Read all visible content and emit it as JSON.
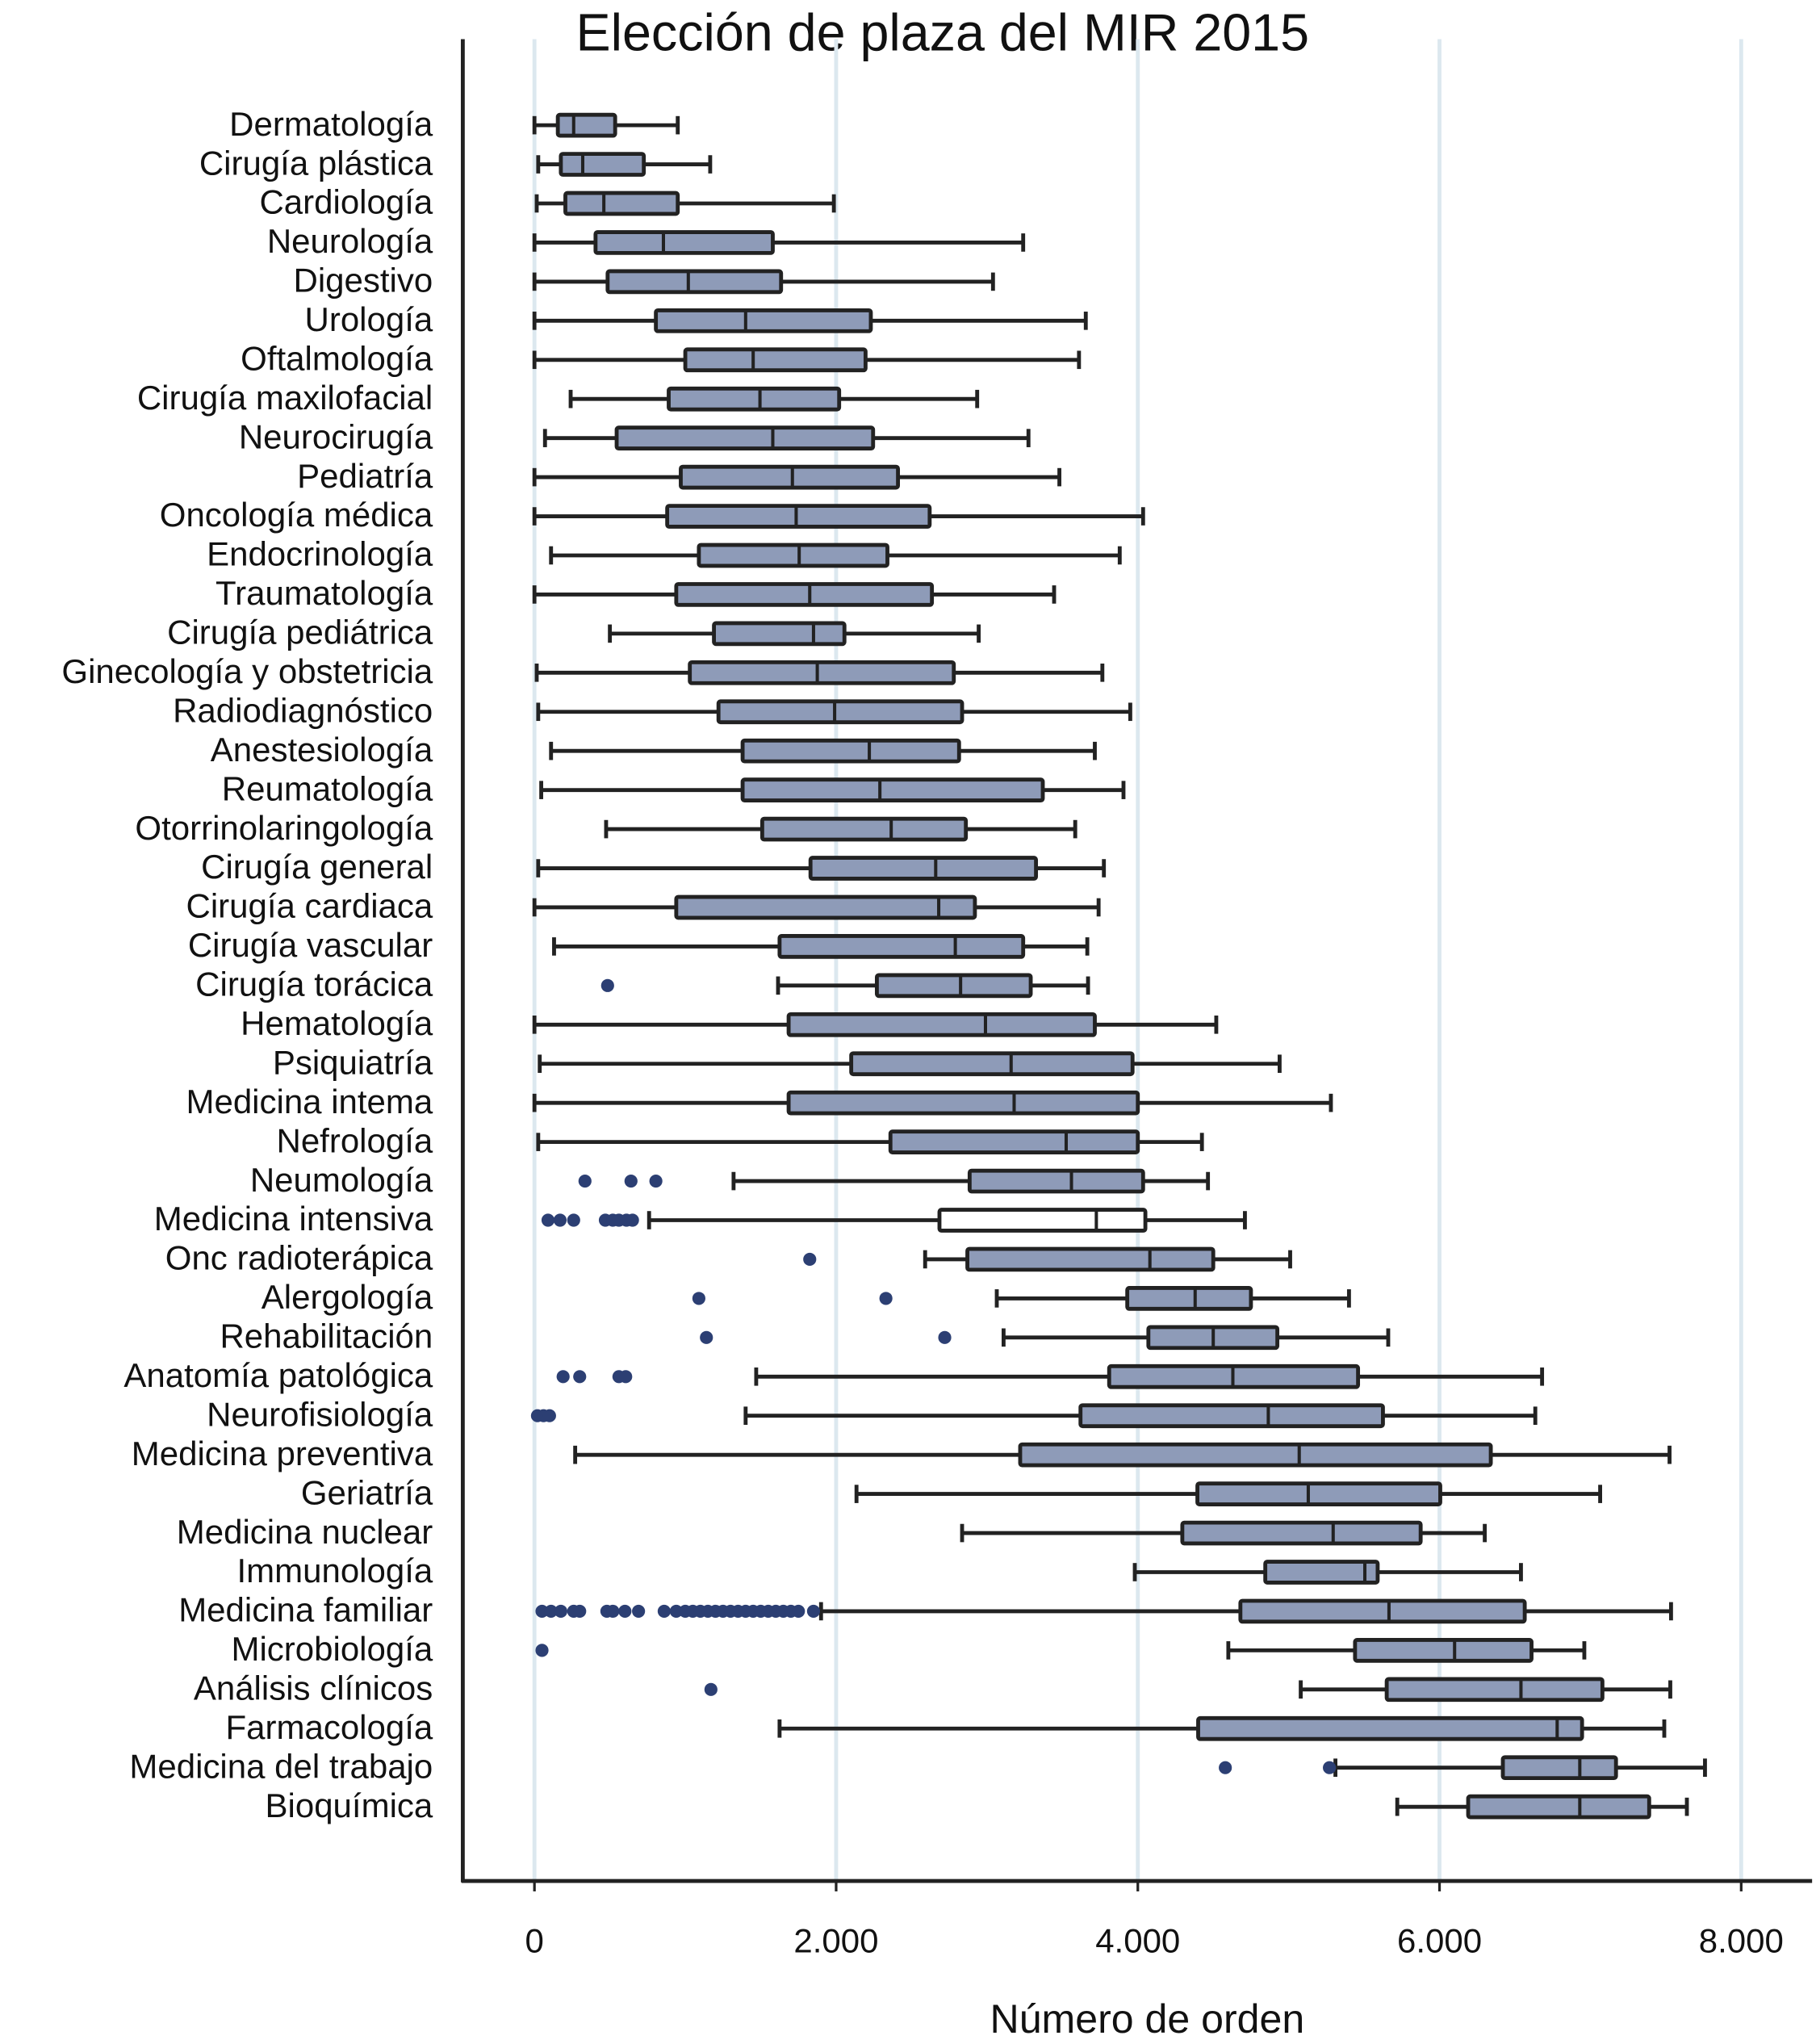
{
  "chart_data": {
    "type": "boxplot",
    "title": "Elección de plaza del MIR 2015",
    "x_label": "Número de orden",
    "xlim": [
      -475,
      8470
    ],
    "xticks": [
      0,
      {
        "value": 2000,
        "label": "2.000"
      },
      {
        "value": 4000,
        "label": "4.000"
      },
      {
        "value": 6000,
        "label": "6.000"
      },
      {
        "value": 8000,
        "label": "8.000"
      }
    ],
    "grid": true,
    "grid_color": "#dce8ef",
    "box_color": "#8e9bb8",
    "outlier_color": "#2c3f73",
    "categories": [
      "Dermatología",
      "Cirugía plástica",
      "Cardiología",
      "Neurología",
      "Digestivo",
      "Urología",
      "Oftalmología",
      "Cirugía maxilofacial",
      "Neurocirugía",
      "Pediatría",
      "Oncología médica",
      "Endocrinología",
      "Traumatología",
      "Cirugía pediátrica",
      "Ginecología y obstetricia",
      "Radiodiagnóstico",
      "Anestesiología",
      "Reumatología",
      "Otorrinolaringología",
      "Cirugía general",
      "Cirugía cardiaca",
      "Cirugía vascular",
      "Cirugía torácica",
      "Hematología",
      "Psiquiatría",
      "Medicina intema",
      "Nefrología",
      "Neumología",
      "Medicina intensiva",
      "Onc radioterápica",
      "Alergología",
      "Rehabilitación",
      "Anatomía patológica",
      "Neurofisiología",
      "Medicina preventiva",
      "Geriatría",
      "Medicina nuclear",
      "Immunología",
      "Medicina familiar",
      "Microbiología",
      "Análisis clínicos",
      "Farmacología",
      "Medicina del trabajo",
      "Bioquímica"
    ],
    "boxes": [
      {
        "min": 0,
        "q1": 155,
        "median": 260,
        "q3": 535,
        "max": 950
      },
      {
        "min": 25,
        "q1": 175,
        "median": 320,
        "q3": 725,
        "max": 1165
      },
      {
        "min": 15,
        "q1": 205,
        "median": 460,
        "q3": 950,
        "max": 1985
      },
      {
        "min": 0,
        "q1": 405,
        "median": 855,
        "q3": 1580,
        "max": 3240
      },
      {
        "min": 0,
        "q1": 485,
        "median": 1020,
        "q3": 1635,
        "max": 3040
      },
      {
        "min": 0,
        "q1": 805,
        "median": 1400,
        "q3": 2230,
        "max": 3655
      },
      {
        "min": 0,
        "q1": 1000,
        "median": 1450,
        "q3": 2195,
        "max": 3610
      },
      {
        "min": 240,
        "q1": 890,
        "median": 1495,
        "q3": 2020,
        "max": 2935
      },
      {
        "min": 70,
        "q1": 545,
        "median": 1580,
        "q3": 2245,
        "max": 3275
      },
      {
        "min": 0,
        "q1": 970,
        "median": 1710,
        "q3": 2410,
        "max": 3480
      },
      {
        "min": 0,
        "q1": 880,
        "median": 1735,
        "q3": 2620,
        "max": 4035
      },
      {
        "min": 110,
        "q1": 1090,
        "median": 1755,
        "q3": 2340,
        "max": 3880
      },
      {
        "min": 0,
        "q1": 940,
        "median": 1825,
        "q3": 2635,
        "max": 3445
      },
      {
        "min": 500,
        "q1": 1190,
        "median": 1850,
        "q3": 2055,
        "max": 2945
      },
      {
        "min": 15,
        "q1": 1030,
        "median": 1875,
        "q3": 2780,
        "max": 3765
      },
      {
        "min": 25,
        "q1": 1220,
        "median": 1990,
        "q3": 2835,
        "max": 3950
      },
      {
        "min": 110,
        "q1": 1380,
        "median": 2220,
        "q3": 2815,
        "max": 3715
      },
      {
        "min": 45,
        "q1": 1380,
        "median": 2290,
        "q3": 3370,
        "max": 3905
      },
      {
        "min": 475,
        "q1": 1510,
        "median": 2365,
        "q3": 2860,
        "max": 3585
      },
      {
        "min": 25,
        "q1": 1830,
        "median": 2660,
        "q3": 3325,
        "max": 3775
      },
      {
        "min": 0,
        "q1": 940,
        "median": 2680,
        "q3": 2920,
        "max": 3740
      },
      {
        "min": 130,
        "q1": 1625,
        "median": 2790,
        "q3": 3240,
        "max": 3665
      },
      {
        "min": 1615,
        "q1": 2270,
        "median": 2825,
        "q3": 3290,
        "max": 3670,
        "outliers": [
          485
        ]
      },
      {
        "min": 0,
        "q1": 1685,
        "median": 2990,
        "q3": 3715,
        "max": 4520
      },
      {
        "min": 35,
        "q1": 2100,
        "median": 3160,
        "q3": 3965,
        "max": 4940
      },
      {
        "min": 0,
        "q1": 1685,
        "median": 3180,
        "q3": 4000,
        "max": 5280
      },
      {
        "min": 25,
        "q1": 2360,
        "median": 3525,
        "q3": 4000,
        "max": 4425
      },
      {
        "min": 1320,
        "q1": 2885,
        "median": 3560,
        "q3": 4035,
        "max": 4465,
        "outliers": [
          335,
          640,
          805
        ]
      },
      {
        "min": 760,
        "q1": 2685,
        "median": 3725,
        "q3": 4050,
        "max": 4710,
        "outliers": [
          90,
          170,
          260,
          470,
          520,
          560,
          610,
          650
        ],
        "fill": "#ffffff"
      },
      {
        "min": 2590,
        "q1": 2870,
        "median": 4080,
        "q3": 4500,
        "max": 5010,
        "outliers": [
          1825
        ]
      },
      {
        "min": 3065,
        "q1": 3930,
        "median": 4380,
        "q3": 4750,
        "max": 5400,
        "outliers": [
          1090,
          2330
        ]
      },
      {
        "min": 3110,
        "q1": 4070,
        "median": 4500,
        "q3": 4925,
        "max": 5660,
        "outliers": [
          1140,
          2720
        ]
      },
      {
        "min": 1470,
        "q1": 3810,
        "median": 4630,
        "q3": 5460,
        "max": 6680,
        "outliers": [
          190,
          300,
          560,
          605
        ]
      },
      {
        "min": 1400,
        "q1": 3620,
        "median": 4865,
        "q3": 5625,
        "max": 6635,
        "outliers": [
          20,
          60,
          100
        ]
      },
      {
        "min": 270,
        "q1": 3220,
        "median": 5070,
        "q3": 6340,
        "max": 7525
      },
      {
        "min": 2135,
        "q1": 4395,
        "median": 5130,
        "q3": 6005,
        "max": 7065
      },
      {
        "min": 2835,
        "q1": 4295,
        "median": 5295,
        "q3": 5875,
        "max": 6300
      },
      {
        "min": 3980,
        "q1": 4845,
        "median": 5505,
        "q3": 5590,
        "max": 6540
      },
      {
        "min": 1900,
        "q1": 4680,
        "median": 5665,
        "q3": 6565,
        "max": 7535,
        "outliers": [
          50,
          110,
          175,
          260,
          300,
          480,
          520,
          600,
          690,
          860,
          940,
          1000,
          1050,
          1100,
          1150,
          1200,
          1250,
          1300,
          1350,
          1400,
          1450,
          1500,
          1550,
          1600,
          1650,
          1700,
          1750,
          1850
        ]
      },
      {
        "min": 4600,
        "q1": 5440,
        "median": 6100,
        "q3": 6610,
        "max": 6960,
        "outliers": [
          50
        ]
      },
      {
        "min": 5080,
        "q1": 5650,
        "median": 6540,
        "q3": 7080,
        "max": 7530,
        "outliers": [
          1170
        ]
      },
      {
        "min": 1625,
        "q1": 4400,
        "median": 6780,
        "q3": 6945,
        "max": 7490
      },
      {
        "min": 5310,
        "q1": 6420,
        "median": 6930,
        "q3": 7170,
        "max": 7760,
        "outliers": [
          4580,
          5270
        ]
      },
      {
        "min": 5720,
        "q1": 6190,
        "median": 6930,
        "q3": 7390,
        "max": 7640
      }
    ]
  }
}
